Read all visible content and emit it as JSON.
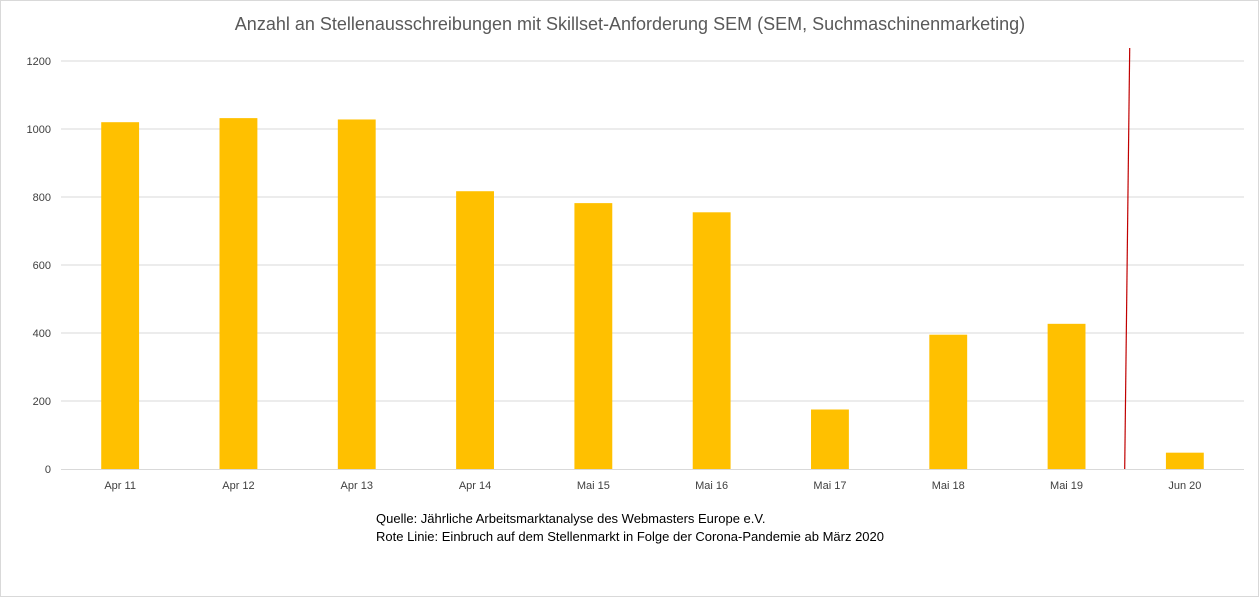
{
  "chart_data": {
    "type": "bar",
    "title": "Anzahl an Stellenausschreibungen mit Skillset-Anforderung SEM (SEM, Suchmaschinenmarketing)",
    "xlabel": "",
    "ylabel": "",
    "categories": [
      "Apr 11",
      "Apr 12",
      "Apr 13",
      "Apr 14",
      "Mai 15",
      "Mai 16",
      "Mai 17",
      "Mai 18",
      "Mai 19",
      "Jun 20"
    ],
    "values": [
      1020,
      1032,
      1028,
      817,
      782,
      755,
      175,
      395,
      427,
      48
    ],
    "ylim": [
      0,
      1200
    ],
    "yticks": [
      0,
      200,
      400,
      600,
      800,
      1000,
      1200
    ],
    "grid": true,
    "legend": "none",
    "bar_color": "#FFC000",
    "marker_line": {
      "position_after_category": "Mai 19",
      "color": "#C00000"
    },
    "notes": [
      "Quelle: Jährliche Arbeitsmarktanalyse des Webmasters Europe e.V.",
      "Rote Linie: Einbruch auf dem Stellenmarkt in Folge der Corona-Pandemie ab März 2020"
    ]
  }
}
